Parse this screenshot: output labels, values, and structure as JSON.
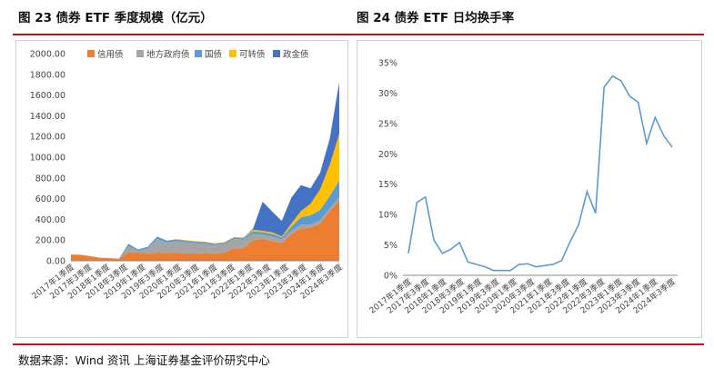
{
  "left_title": "图 23 债券 ETF 季度规模（亿元）",
  "right_title": "图 24 债券 ETF 日均换手率",
  "source": "数据来源：Wind 资讯 上海证券基金评价研究中心",
  "colors": {
    "credit": "#ed7d31",
    "local_gov": "#a5a5a5",
    "treasury": "#5b9bd5",
    "convertible": "#ffc000",
    "policy": "#4472c4",
    "turnover_line": "#5b9bd5",
    "rule": "#c0101a"
  },
  "chart_data": [
    {
      "type": "area",
      "stacked": true,
      "title": "图 23 债券 ETF 季度规模（亿元）",
      "ylim": [
        0,
        2000
      ],
      "yticks": [
        "0.00",
        "200.00",
        "400.00",
        "600.00",
        "800.00",
        "1000.00",
        "1200.00",
        "1400.00",
        "1600.00",
        "1800.00",
        "2000.00"
      ],
      "x_labels": [
        "2017年1季度",
        "2017年3季度",
        "2018年1季度",
        "2018年3季度",
        "2019年1季度",
        "2019年3季度",
        "2020年1季度",
        "2020年3季度",
        "2021年1季度",
        "2021年3季度",
        "2022年1季度",
        "2022年3季度",
        "2023年1季度",
        "2023年3季度",
        "2024年1季度",
        "2024年3季度"
      ],
      "legend_placement": "top",
      "series": [
        {
          "name": "信用债",
          "values": [
            60,
            58,
            45,
            30,
            25,
            20,
            80,
            80,
            70,
            80,
            75,
            80,
            70,
            70,
            75,
            70,
            80,
            120,
            120,
            200,
            210,
            190,
            170,
            260,
            310,
            320,
            360,
            480,
            580
          ]
        },
        {
          "name": "地方政府债",
          "values": [
            0,
            0,
            0,
            0,
            0,
            0,
            60,
            15,
            50,
            130,
            100,
            110,
            110,
            100,
            90,
            80,
            80,
            90,
            85,
            60,
            40,
            45,
            35,
            30,
            40,
            30,
            30,
            25,
            35
          ]
        },
        {
          "name": "国债",
          "values": [
            0,
            0,
            0,
            0,
            0,
            0,
            25,
            15,
            15,
            25,
            20,
            15,
            15,
            15,
            15,
            15,
            15,
            15,
            15,
            25,
            25,
            25,
            20,
            40,
            70,
            90,
            100,
            120,
            160
          ]
        },
        {
          "name": "可转债",
          "values": [
            0,
            0,
            0,
            0,
            0,
            0,
            0,
            0,
            0,
            0,
            0,
            5,
            5,
            5,
            5,
            5,
            5,
            5,
            5,
            15,
            15,
            15,
            10,
            30,
            60,
            110,
            200,
            300,
            450
          ]
        },
        {
          "name": "政金债",
          "values": [
            0,
            0,
            0,
            0,
            0,
            0,
            0,
            0,
            0,
            0,
            0,
            0,
            0,
            0,
            0,
            0,
            0,
            0,
            0,
            10,
            280,
            200,
            150,
            250,
            250,
            150,
            160,
            250,
            500
          ]
        }
      ]
    },
    {
      "type": "line",
      "title": "图 24 债券 ETF 日均换手率",
      "ylim": [
        0,
        35
      ],
      "yticks": [
        "0%",
        "5%",
        "10%",
        "15%",
        "20%",
        "25%",
        "30%",
        "35%"
      ],
      "x_labels": [
        "2017年1季度",
        "2017年3季度",
        "2018年1季度",
        "2018年3季度",
        "2019年1季度",
        "2019年3季度",
        "2020年1季度",
        "2020年3季度",
        "2021年1季度",
        "2021年3季度",
        "2022年1季度",
        "2022年3季度",
        "2023年1季度",
        "2023年3季度",
        "2024年1季度",
        "2024年3季度"
      ],
      "series": [
        {
          "values": [
            3.6,
            12.0,
            12.9,
            5.8,
            3.6,
            4.3,
            5.4,
            2.2,
            1.8,
            1.4,
            0.8,
            0.8,
            0.8,
            1.8,
            1.9,
            1.4,
            1.6,
            1.8,
            2.4,
            5.5,
            8.3,
            13.8,
            10.2,
            31.0,
            32.8,
            32.0,
            29.5,
            28.5,
            21.7,
            26.0,
            23.0,
            21.1
          ]
        }
      ]
    }
  ]
}
